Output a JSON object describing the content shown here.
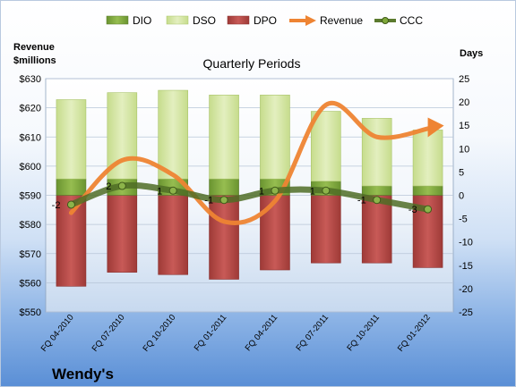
{
  "chart_data": {
    "type": "bar",
    "title": "Quarterly Periods",
    "company": "Wendy's",
    "categories": [
      "FQ 04-2010",
      "FQ 07-2010",
      "FQ 10-2010",
      "FQ 01-2011",
      "FQ 04-2011",
      "FQ 07-2011",
      "FQ 10-2011",
      "FQ 01-2012"
    ],
    "left_axis": {
      "label_line1": "Revenue",
      "label_line2": "$millions",
      "ylim": [
        550,
        630
      ],
      "ticks": [
        550,
        560,
        570,
        580,
        590,
        600,
        610,
        620,
        630
      ],
      "tick_prefix": "$"
    },
    "right_axis": {
      "label": "Days",
      "ylim": [
        -25,
        25
      ],
      "ticks": [
        -25,
        -20,
        -15,
        -10,
        -5,
        0,
        5,
        10,
        15,
        20,
        25
      ]
    },
    "series": [
      {
        "name": "DIO",
        "kind": "bar",
        "axis": "days",
        "color": "#7fa83a",
        "values": [
          3.5,
          3.5,
          3.5,
          3.5,
          3.5,
          3,
          2,
          2
        ]
      },
      {
        "name": "DSO",
        "kind": "bar",
        "axis": "days",
        "color": "#d7e8a6",
        "values": [
          17,
          18.5,
          19,
          18,
          18,
          15,
          14.5,
          12
        ]
      },
      {
        "name": "DPO",
        "kind": "bar",
        "axis": "days",
        "color": "#c0504d",
        "values": [
          -19.5,
          -16.5,
          -17,
          -18,
          -16,
          -14.5,
          -14.5,
          -15.5
        ]
      },
      {
        "name": "Revenue",
        "kind": "line",
        "axis": "revenue",
        "color": "#ee8433",
        "values": [
          584,
          602,
          597,
          581,
          588,
          621,
          610,
          613
        ]
      },
      {
        "name": "CCC",
        "kind": "line",
        "axis": "days",
        "color": "#5b7a2e",
        "values": [
          -2,
          2,
          1,
          -1,
          1,
          1,
          -1,
          -3
        ],
        "labels": [
          "-2",
          "2",
          "1",
          "-1",
          "1",
          "1",
          "-1",
          "-3"
        ]
      }
    ],
    "grid": true,
    "legend_position": "top"
  }
}
